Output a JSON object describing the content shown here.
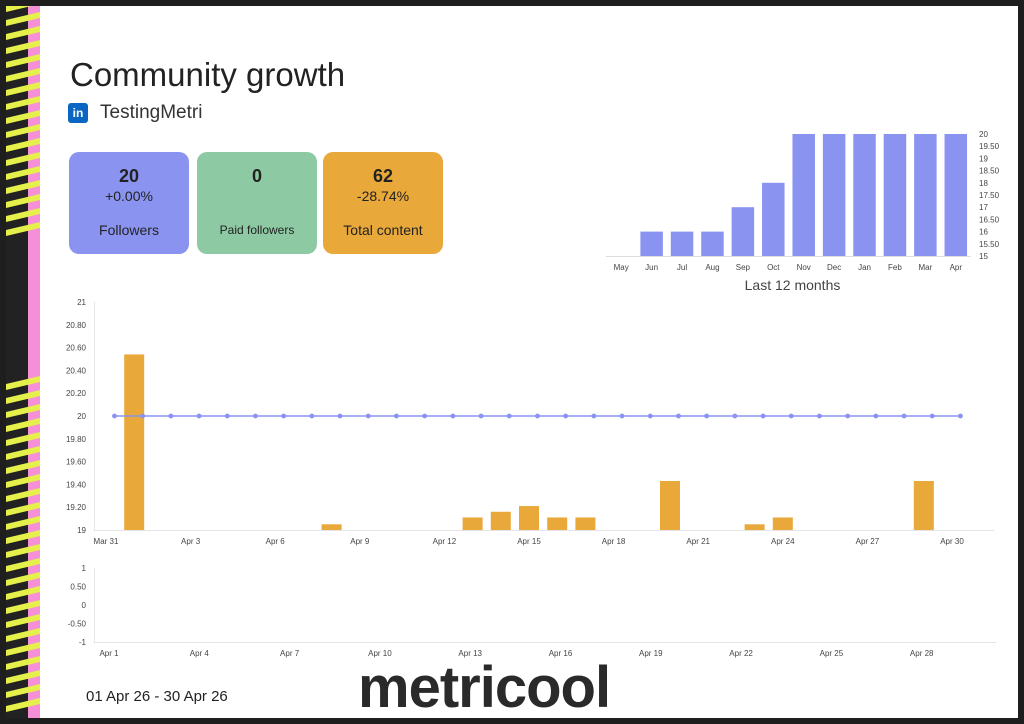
{
  "header": {
    "title": "Community growth",
    "account_icon": "linkedin-icon",
    "account_icon_glyph": "in",
    "account_name": "TestingMetri"
  },
  "cards": [
    {
      "value": "20",
      "change": "+0.00%",
      "label": "Followers",
      "color": "#8a94f0"
    },
    {
      "value": "0",
      "change": "",
      "label": "Paid followers",
      "color": "#8dc9a3"
    },
    {
      "value": "62",
      "change": "-28.74%",
      "label": "Total content",
      "color": "#e8a83a"
    }
  ],
  "footer": {
    "date_range": "01 Apr 26  -  30 Apr 26",
    "brand": "metricool"
  },
  "chart_data": [
    {
      "type": "bar",
      "title": "Last 12 months",
      "categories": [
        "May",
        "Jun",
        "Jul",
        "Aug",
        "Sep",
        "Oct",
        "Nov",
        "Dec",
        "Jan",
        "Feb",
        "Mar",
        "Apr"
      ],
      "values": [
        15,
        16,
        16,
        16,
        17,
        18,
        20,
        20,
        20,
        20,
        20,
        20
      ],
      "ylim": [
        15,
        20
      ],
      "y_ticks": [
        "15",
        "15.50",
        "16",
        "16.50",
        "17",
        "17.50",
        "18",
        "18.50",
        "19",
        "19.50",
        "20"
      ],
      "axis_side": "right",
      "color": "#8a94f0"
    },
    {
      "type": "bar+line",
      "x_ticks": [
        "Mar 31",
        "Apr 3",
        "Apr 6",
        "Apr 9",
        "Apr 12",
        "Apr 15",
        "Apr 18",
        "Apr 21",
        "Apr 24",
        "Apr 27",
        "Apr 30"
      ],
      "ylim": [
        19,
        21
      ],
      "y_ticks": [
        "19",
        "19.20",
        "19.40",
        "19.60",
        "19.80",
        "20",
        "20.20",
        "20.40",
        "20.60",
        "20.80",
        "21"
      ],
      "bar_color": "#e8a83a",
      "line_color": "#8a94f0",
      "bars": [
        {
          "day": 1,
          "value": 20.54
        },
        {
          "day": 8,
          "value": 19.05
        },
        {
          "day": 13,
          "value": 19.11
        },
        {
          "day": 14,
          "value": 19.16
        },
        {
          "day": 15,
          "value": 19.21
        },
        {
          "day": 16,
          "value": 19.11
        },
        {
          "day": 17,
          "value": 19.11
        },
        {
          "day": 20,
          "value": 19.43
        },
        {
          "day": 23,
          "value": 19.05
        },
        {
          "day": 24,
          "value": 19.11
        },
        {
          "day": 29,
          "value": 19.43
        }
      ],
      "line": [
        20,
        20,
        20,
        20,
        20,
        20,
        20,
        20,
        20,
        20,
        20,
        20,
        20,
        20,
        20,
        20,
        20,
        20,
        20,
        20,
        20,
        20,
        20,
        20,
        20,
        20,
        20,
        20,
        20,
        20,
        20
      ]
    },
    {
      "type": "bar",
      "x_ticks": [
        "Apr 1",
        "Apr 4",
        "Apr 7",
        "Apr 10",
        "Apr 13",
        "Apr 16",
        "Apr 19",
        "Apr 22",
        "Apr 25",
        "Apr 28"
      ],
      "ylim": [
        -1,
        1
      ],
      "y_ticks": [
        "-1",
        "-0.50",
        "0",
        "0.50",
        "1"
      ],
      "values": []
    }
  ]
}
